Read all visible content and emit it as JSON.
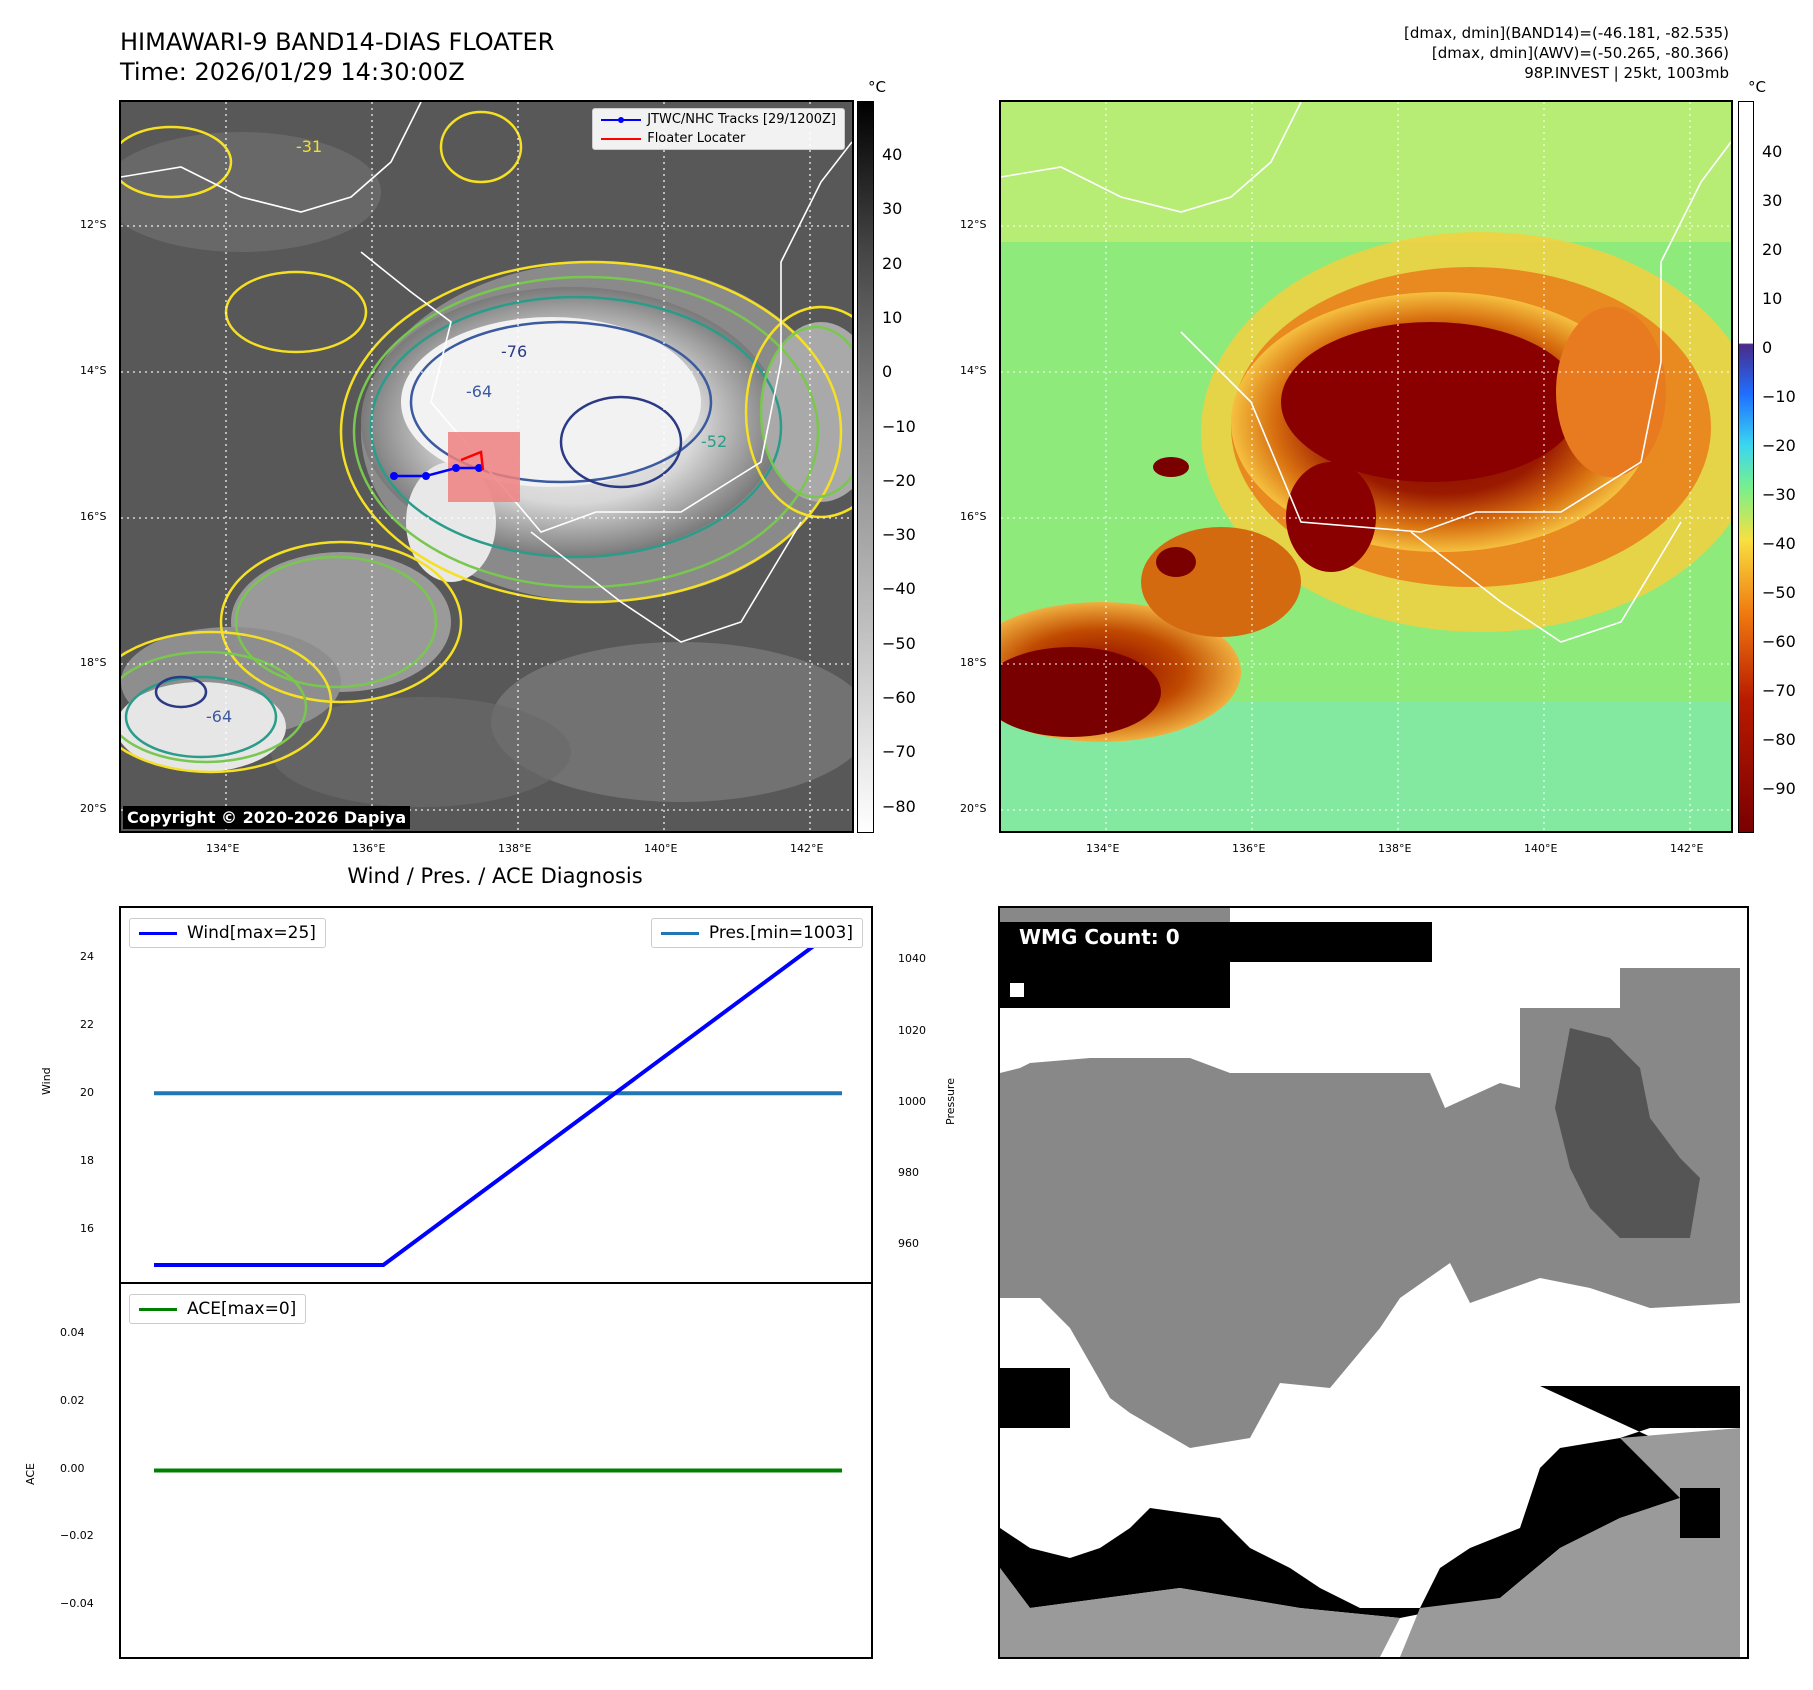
{
  "header": {
    "title_line1": "HIMAWARI-9 BAND14-DIAS FLOATER",
    "title_line2": "Time: 2026/01/29 14:30:00Z",
    "info_line1": "[dmax, dmin](BAND14)=(-46.181, -82.535)",
    "info_line2": "[dmax, dmin](AWV)=(-50.265, -80.366)",
    "info_line3": "98P.INVEST | 25kt, 1003mb"
  },
  "map": {
    "lon_ticks": [
      "134°E",
      "136°E",
      "138°E",
      "140°E",
      "142°E"
    ],
    "lat_ticks": [
      "12°S",
      "14°S",
      "16°S",
      "18°S",
      "20°S"
    ],
    "copyright": "Copyright © 2020-2026 Dapiya",
    "legend": {
      "tracks": "JTWC/NHC Tracks [29/1200Z]",
      "locator": "Floater Locater"
    },
    "contour_labels": [
      "-31",
      "-76",
      "-64",
      "-52",
      "-64"
    ],
    "track_color": "#0000ff",
    "locator_color": "#ff0000"
  },
  "colorbar_gray": {
    "unit": "°C",
    "ticks": [
      "40",
      "30",
      "20",
      "10",
      "0",
      "−10",
      "−20",
      "−30",
      "−40",
      "−50",
      "−60",
      "−70",
      "−80"
    ]
  },
  "colorbar_awv": {
    "unit": "°C",
    "ticks": [
      "40",
      "30",
      "20",
      "10",
      "0",
      "−10",
      "−20",
      "−30",
      "−40",
      "−50",
      "−60",
      "−70",
      "−80",
      "−90"
    ]
  },
  "diagnosis_title": "Wind / Pres. / ACE Diagnosis",
  "wmg_label": "WMG Count: 0",
  "chart_data": [
    {
      "type": "line",
      "x": [
        0,
        1,
        2,
        3
      ],
      "series": [
        {
          "name": "Wind[max=25]",
          "values": [
            15,
            15,
            20,
            25
          ],
          "color": "#0000ff"
        },
        {
          "name": "Pres.[min=1003]",
          "values": [
            1003,
            1003,
            1003,
            1003
          ],
          "color": "#1f77b4"
        }
      ],
      "ylabel": "Wind",
      "ylabel_right": "Pressure",
      "yticks": [
        "24",
        "22",
        "20",
        "18",
        "16"
      ],
      "yticks_right": [
        "1040",
        "1020",
        "1000",
        "980",
        "960"
      ],
      "ylim": [
        14.5,
        25.5
      ],
      "ylim_right": [
        950,
        1055
      ]
    },
    {
      "type": "line",
      "x": [
        0,
        1,
        2,
        3
      ],
      "series": [
        {
          "name": "ACE[max=0]",
          "values": [
            0,
            0,
            0,
            0
          ],
          "color": "#008000"
        }
      ],
      "ylabel": "ACE",
      "yticks": [
        "0.04",
        "0.02",
        "0.00",
        "−0.02",
        "−0.04"
      ],
      "ylim": [
        -0.055,
        0.055
      ]
    }
  ]
}
